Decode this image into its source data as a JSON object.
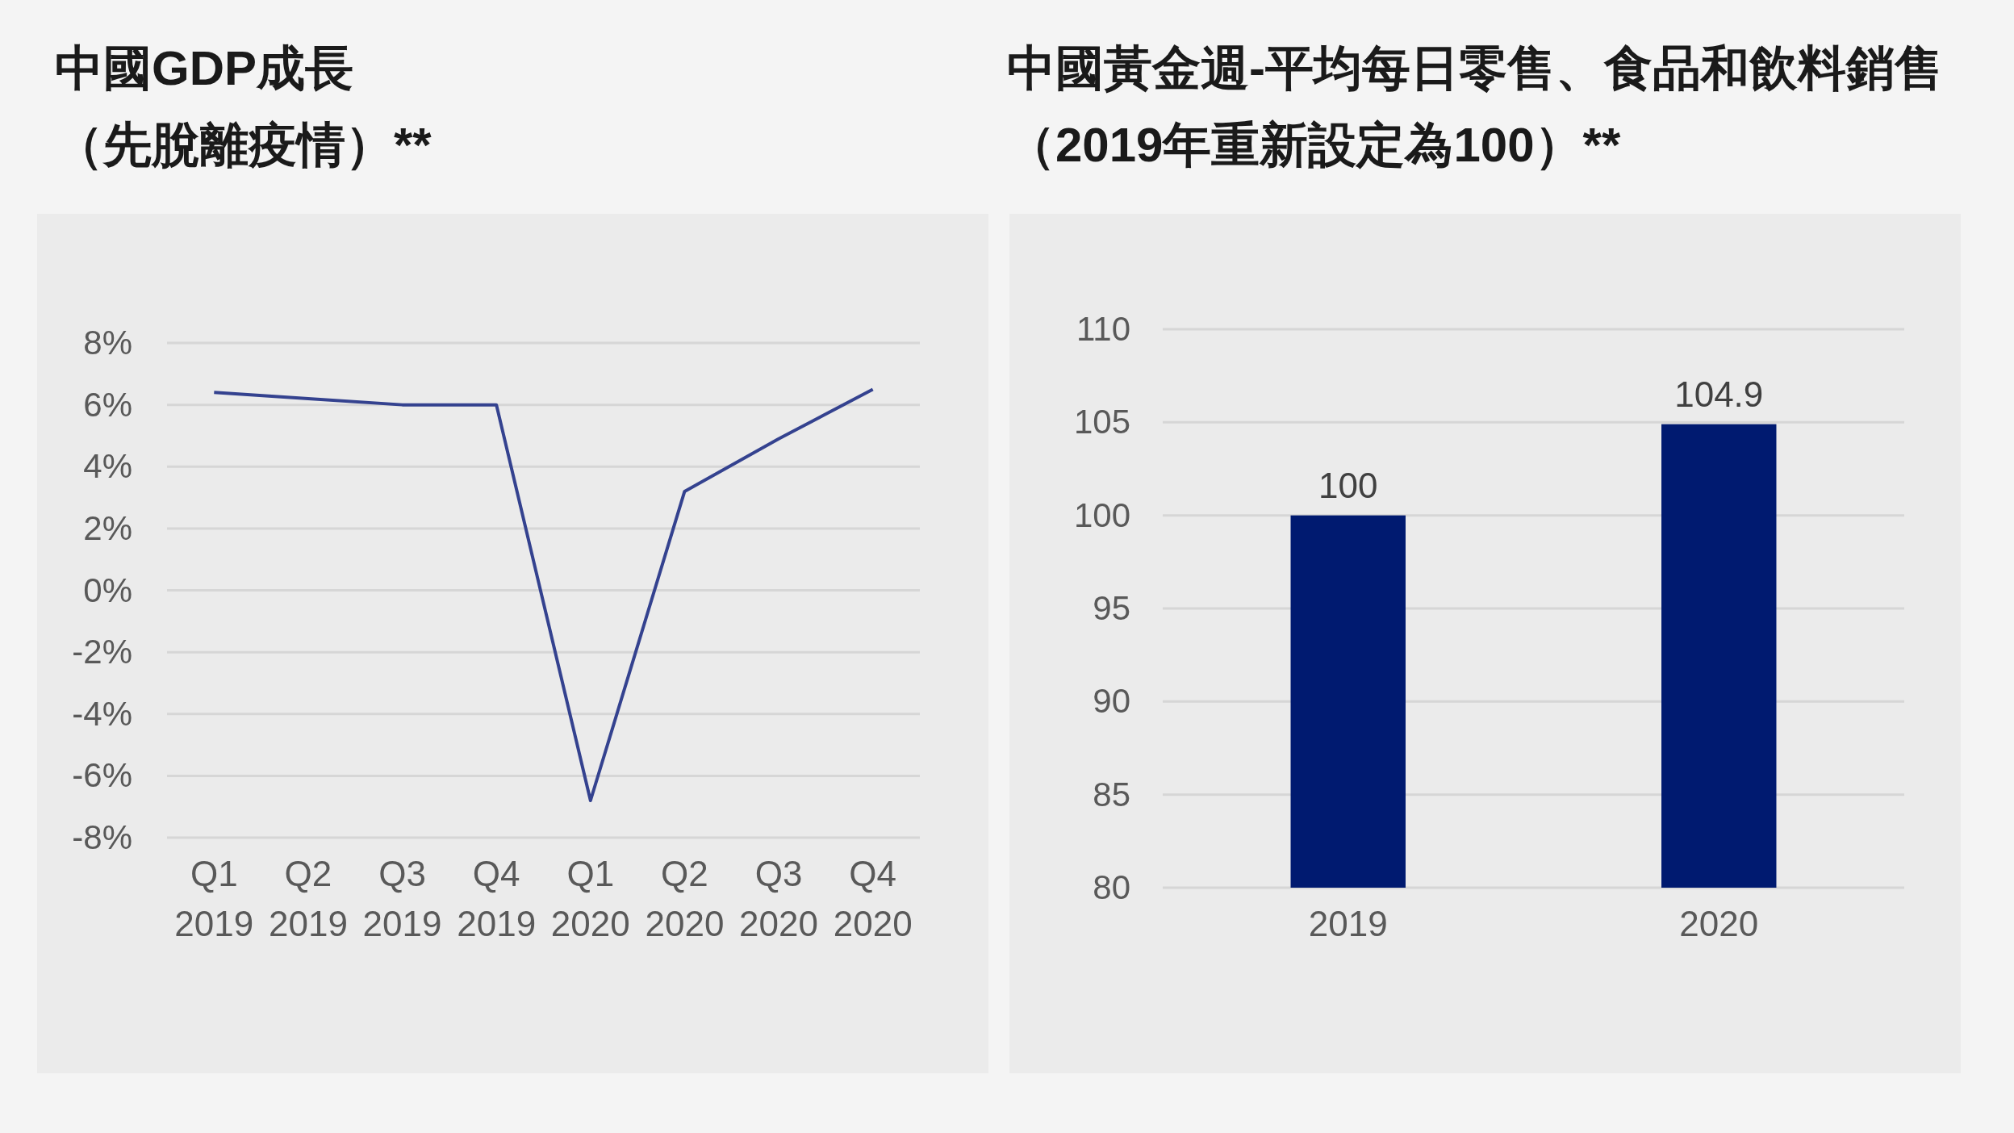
{
  "chart_data": [
    {
      "type": "line",
      "title": "中國GDP成長",
      "subtitle": "（先脫離疫情）**",
      "categories": [
        "Q1 2019",
        "Q2 2019",
        "Q3 2019",
        "Q4 2019",
        "Q1 2020",
        "Q2 2020",
        "Q3 2020",
        "Q4 2020"
      ],
      "series": [
        {
          "color": "#34428f",
          "values": [
            6.4,
            6.2,
            6.0,
            6.0,
            -6.8,
            3.2,
            4.9,
            6.5
          ]
        }
      ],
      "ylim": [
        -8,
        8
      ],
      "yticks": [
        {
          "value": -8,
          "label": "-8%"
        },
        {
          "value": -6,
          "label": "-6%"
        },
        {
          "value": -4,
          "label": "-4%"
        },
        {
          "value": -2,
          "label": "-2%"
        },
        {
          "value": 0,
          "label": "0%"
        },
        {
          "value": 2,
          "label": "2%"
        },
        {
          "value": 4,
          "label": "4%"
        },
        {
          "value": 6,
          "label": "6%"
        },
        {
          "value": 8,
          "label": "8%"
        }
      ],
      "grid": "y",
      "marker": "none",
      "line_style": "solid"
    },
    {
      "type": "bar",
      "title": "中國黃金週-平均每日零售、食品和飲料銷售",
      "subtitle": "（2019年重新設定為100）**",
      "categories": [
        "2019",
        "2020"
      ],
      "series": [
        {
          "color": "#001a70",
          "values": [
            100,
            104.9
          ]
        }
      ],
      "ylim": [
        80,
        110
      ],
      "yticks": [
        80,
        85,
        90,
        95,
        100,
        105,
        110
      ],
      "grid": "y",
      "data_labels": true
    }
  ]
}
